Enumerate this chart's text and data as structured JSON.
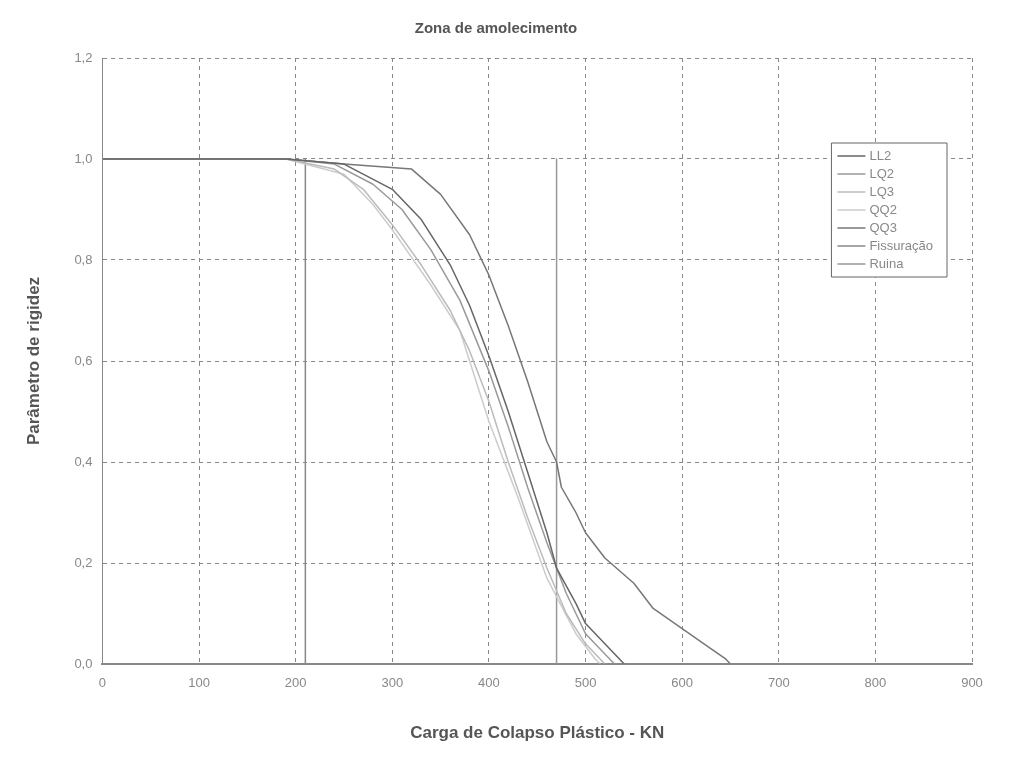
{
  "chart_data": {
    "type": "line",
    "title": "Zona de amolecimento",
    "xlabel": "Carga de Colapso Plástico - KN",
    "ylabel": "Parâmetro de rigidez",
    "xlim": [
      0,
      900
    ],
    "xticks": [
      0,
      100,
      200,
      300,
      400,
      500,
      600,
      700,
      800,
      900
    ],
    "ylim": [
      0,
      1.2
    ],
    "yticks": [
      {
        "value": 0,
        "label": "0,0"
      },
      {
        "value": 0.2,
        "label": "0,2"
      },
      {
        "value": 0.4,
        "label": "0,4"
      },
      {
        "value": 0.6,
        "label": "0,6"
      },
      {
        "value": 0.8,
        "label": "0,8"
      },
      {
        "value": 1,
        "label": "1,0"
      },
      {
        "value": 1.2,
        "label": "1,2"
      }
    ],
    "grid": true,
    "legend": "top right",
    "marker": "none",
    "line_style": "solid",
    "series": [
      {
        "name": "LL2",
        "color": "#666666",
        "x": [
          0,
          190,
          250,
          300,
          330,
          360,
          380,
          400,
          420,
          440,
          460,
          470,
          490,
          500,
          520,
          540
        ],
        "values": [
          1,
          1,
          0.99,
          0.94,
          0.88,
          0.79,
          0.71,
          0.61,
          0.5,
          0.38,
          0.26,
          0.19,
          0.12,
          0.08,
          0.04,
          0
        ]
      },
      {
        "name": "LQ2",
        "color": "#999999",
        "x": [
          0,
          190,
          240,
          280,
          310,
          340,
          370,
          400,
          420,
          440,
          460,
          480,
          500,
          520,
          530
        ],
        "values": [
          1,
          1,
          0.99,
          0.95,
          0.9,
          0.82,
          0.72,
          0.58,
          0.47,
          0.35,
          0.24,
          0.14,
          0.06,
          0.02,
          0
        ]
      },
      {
        "name": "LQ3",
        "color": "#bbbbbb",
        "x": [
          0,
          190,
          240,
          270,
          300,
          330,
          360,
          380,
          400,
          420,
          440,
          460,
          480,
          500,
          520
        ],
        "values": [
          1,
          1,
          0.98,
          0.94,
          0.87,
          0.79,
          0.7,
          0.62,
          0.52,
          0.4,
          0.29,
          0.19,
          0.1,
          0.04,
          0
        ]
      },
      {
        "name": "QQ2",
        "color": "#cccccc",
        "x": [
          0,
          190,
          250,
          280,
          300,
          340,
          370,
          400,
          430,
          460,
          490,
          510,
          515
        ],
        "values": [
          1,
          1,
          0.97,
          0.91,
          0.86,
          0.75,
          0.66,
          0.48,
          0.33,
          0.17,
          0.06,
          0.01,
          0
        ]
      },
      {
        "name": "QQ3",
        "color": "#777777",
        "x": [
          0,
          190,
          250,
          320,
          350,
          380,
          400,
          420,
          440,
          460,
          470,
          475,
          490,
          500,
          520,
          550,
          570,
          600,
          630,
          645,
          650
        ],
        "values": [
          1,
          1,
          0.99,
          0.98,
          0.93,
          0.85,
          0.77,
          0.67,
          0.56,
          0.44,
          0.4,
          0.35,
          0.3,
          0.26,
          0.21,
          0.16,
          0.11,
          0.07,
          0.03,
          0.01,
          0
        ]
      },
      {
        "name": "Fissuração",
        "color": "#888888",
        "x": [
          210,
          210
        ],
        "values": [
          0,
          1
        ]
      },
      {
        "name": "Ruina",
        "color": "#999999",
        "x": [
          470,
          470
        ],
        "values": [
          0,
          1
        ]
      }
    ]
  }
}
